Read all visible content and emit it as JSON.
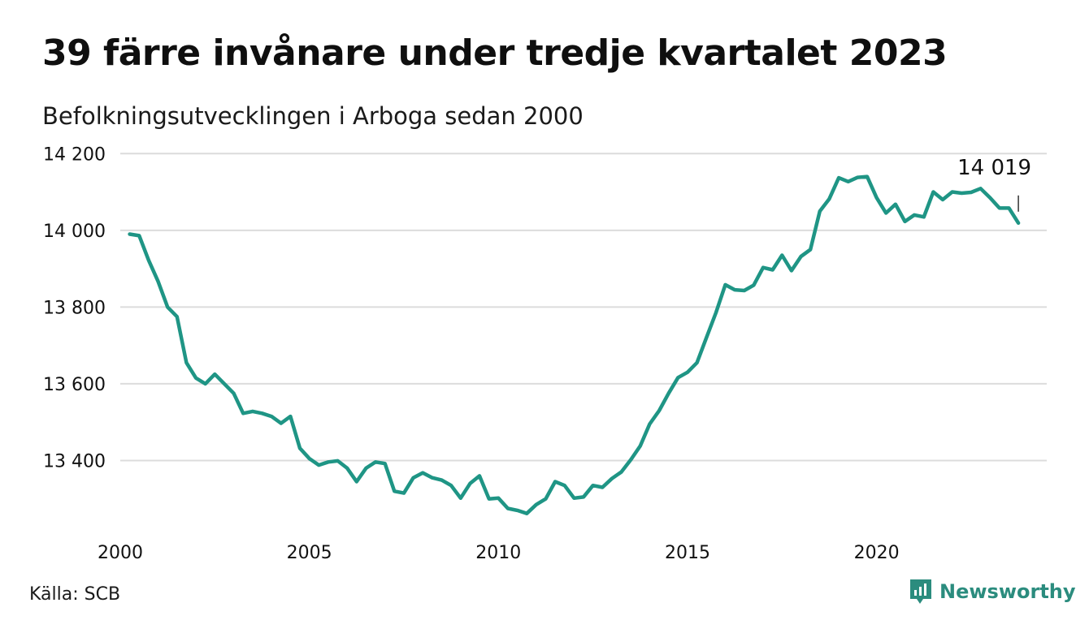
{
  "header": {
    "title": "39 färre invånare under tredje kvartalet 2023",
    "subtitle": "Befolkningsutvecklingen i Arboga sedan 2000"
  },
  "footer": {
    "source": "Källa: SCB",
    "brand": "Newsworthy"
  },
  "colors": {
    "line": "#1f9585",
    "grid": "#dcdcdc",
    "brand": "#2b8c7e",
    "text": "#111111"
  },
  "chart_data": {
    "type": "line",
    "title": "39 färre invånare under tredje kvartalet 2023",
    "subtitle": "Befolkningsutvecklingen i Arboga sedan 2000",
    "xlabel": "",
    "ylabel": "",
    "xlim": [
      2000,
      2024
    ],
    "ylim": [
      13250,
      14200
    ],
    "x_ticks": [
      2000,
      2005,
      2010,
      2015,
      2020
    ],
    "x_tick_labels": [
      "2000",
      "2005",
      "2010",
      "2015",
      "2020"
    ],
    "y_ticks": [
      13400,
      13600,
      13800,
      14000,
      14200
    ],
    "y_tick_labels": [
      "13 400",
      "13 600",
      "13 800",
      "14 000",
      "14 200"
    ],
    "grid": "horizontal",
    "legend": "none",
    "series": [
      {
        "x": [
          2000.25,
          2000.5,
          2000.75,
          2001.0,
          2001.25,
          2001.5,
          2001.75,
          2002.0,
          2002.25,
          2002.5,
          2002.75,
          2003.0,
          2003.25,
          2003.5,
          2003.75,
          2004.0,
          2004.25,
          2004.5,
          2004.75,
          2005.0,
          2005.25,
          2005.5,
          2005.75,
          2006.0,
          2006.25,
          2006.5,
          2006.75,
          2007.0,
          2007.25,
          2007.5,
          2007.75,
          2008.0,
          2008.25,
          2008.5,
          2008.75,
          2009.0,
          2009.25,
          2009.5,
          2009.75,
          2010.0,
          2010.25,
          2010.5,
          2010.75,
          2011.0,
          2011.25,
          2011.5,
          2011.75,
          2012.0,
          2012.25,
          2012.5,
          2012.75,
          2013.0,
          2013.25,
          2013.5,
          2013.75,
          2014.0,
          2014.25,
          2014.5,
          2014.75,
          2015.0,
          2015.25,
          2015.5,
          2015.75,
          2016.0,
          2016.25,
          2016.5,
          2016.75,
          2017.0,
          2017.25,
          2017.5,
          2017.75,
          2018.0,
          2018.25,
          2018.5,
          2018.75,
          2019.0,
          2019.25,
          2019.5,
          2019.75,
          2020.0,
          2020.25,
          2020.5,
          2020.75,
          2021.0,
          2021.25,
          2021.5,
          2021.75,
          2022.0,
          2022.25,
          2022.5,
          2022.75,
          2023.0,
          2023.25,
          2023.5,
          2023.75
        ],
        "values": [
          13990,
          13986,
          13922,
          13867,
          13800,
          13775,
          13655,
          13615,
          13600,
          13625,
          13600,
          13575,
          13523,
          13528,
          13523,
          13515,
          13497,
          13515,
          13432,
          13405,
          13388,
          13396,
          13399,
          13380,
          13345,
          13380,
          13396,
          13392,
          13320,
          13315,
          13355,
          13368,
          13355,
          13349,
          13335,
          13302,
          13340,
          13360,
          13300,
          13302,
          13275,
          13270,
          13262,
          13285,
          13300,
          13345,
          13335,
          13302,
          13305,
          13335,
          13330,
          13353,
          13370,
          13402,
          13438,
          13495,
          13530,
          13575,
          13616,
          13630,
          13655,
          13720,
          13785,
          13858,
          13845,
          13843,
          13857,
          13903,
          13897,
          13935,
          13895,
          13932,
          13950,
          14050,
          14082,
          14137,
          14127,
          14138,
          14140,
          14085,
          14045,
          14068,
          14023,
          14040,
          14035,
          14100,
          14080,
          14100,
          14097,
          14099,
          14109,
          14085,
          14058,
          14058,
          14019
        ]
      }
    ],
    "annotations": [
      {
        "text": "14 019",
        "x": 2023.75,
        "y": 14019
      }
    ]
  }
}
